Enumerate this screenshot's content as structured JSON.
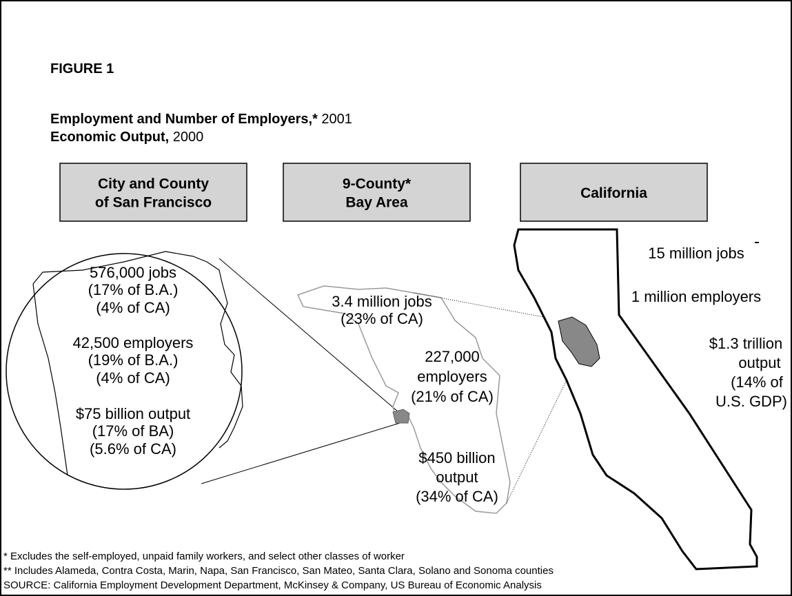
{
  "figure": "FIGURE 1",
  "title": [
    {
      "bold": "Employment and Number of Employers,*",
      "normal": " 2001"
    },
    {
      "bold": "Economic Output,",
      "normal": " 2000"
    }
  ],
  "boxes": [
    {
      "lines": [
        "City and County",
        "of San Francisco"
      ]
    },
    {
      "lines": [
        "9-County*",
        "Bay Area"
      ]
    },
    {
      "lines": [
        "California"
      ]
    }
  ],
  "san_francisco": [
    "576,000 jobs",
    "(17% of B.A.)",
    "(4% of CA)",
    "42,500 employers",
    "(19% of B.A.)",
    "(4% of CA)",
    "$75 billion output",
    "(17% of BA)",
    "(5.6% of CA)"
  ],
  "bay_area": [
    "3.4 million jobs",
    "(23% of CA)",
    "227,000",
    "employers",
    "(21% of CA)",
    "$450 billion",
    "output",
    "(34% of CA)"
  ],
  "california": [
    "15 million jobs",
    "1 million employers",
    "$1.3 trillion",
    "output",
    "(14% of",
    "U.S. GDP)"
  ],
  "footnotes": [
    "* Excludes the self-employed, unpaid family workers, and select other classes of worker",
    "** Includes Alameda, Contra Costa, Marin, Napa, San Francisco, San Mateo, Santa Clara, Solano  and Sonoma counties",
    "SOURCE: California Employment Development Department, McKinsey & Company, US Bureau of Economic Analysis"
  ]
}
